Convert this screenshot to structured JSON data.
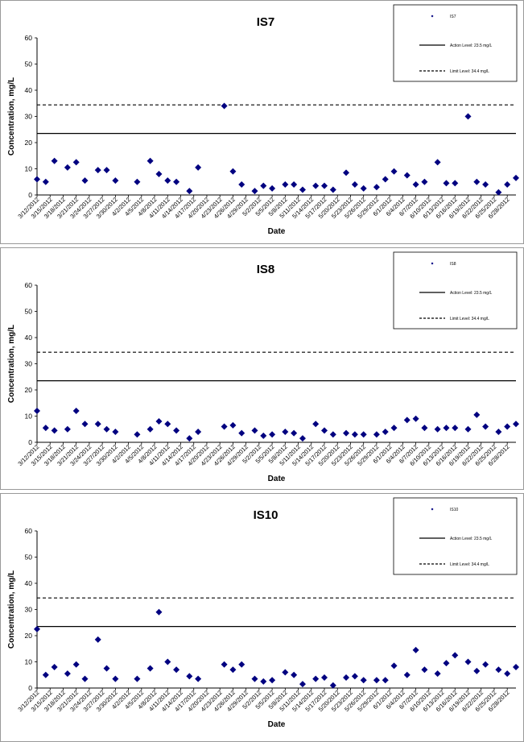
{
  "chart_data": [
    {
      "type": "scatter",
      "title": "IS7",
      "xlabel": "Date",
      "ylabel": "Concentration, mg/L",
      "ylim": [
        0,
        60
      ],
      "yticks": [
        0,
        10,
        20,
        30,
        40,
        50,
        60
      ],
      "xrange": [
        "2012-03-12",
        "2012-06-30"
      ],
      "xtick_labels": [
        "3/12/2012",
        "3/15/2012",
        "3/18/2012",
        "3/21/2012",
        "3/24/2012",
        "3/27/2012",
        "3/30/2012",
        "4/2/2012",
        "4/5/2012",
        "4/8/2012",
        "4/11/2012",
        "4/14/2012",
        "4/17/2012",
        "4/20/2012",
        "4/23/2012",
        "4/26/2012",
        "4/29/2012",
        "5/2/2012",
        "5/5/2012",
        "5/8/2012",
        "5/11/2012",
        "5/14/2012",
        "5/17/2012",
        "5/20/2012",
        "5/23/2012",
        "5/26/2012",
        "5/29/2012",
        "6/1/2012",
        "6/4/2012",
        "6/7/2012",
        "6/10/2012",
        "6/13/2012",
        "6/16/2012",
        "6/19/2012",
        "6/22/2012",
        "6/25/2012",
        "6/28/2012"
      ],
      "lines": [
        {
          "name": "Action Level: 23.5 mg/L",
          "y": 23.5,
          "style": "solid"
        },
        {
          "name": "Limit Level: 34.4 mg/L",
          "y": 34.4,
          "style": "dashed"
        }
      ],
      "legend": [
        "IS7",
        "Action Level: 23.5 mg/L",
        "Limit Level: 34.4 mg/L"
      ],
      "legend_position": "top-right",
      "series": [
        {
          "name": "IS7",
          "x": [
            "2012-03-12",
            "2012-03-14",
            "2012-03-16",
            "2012-03-19",
            "2012-03-21",
            "2012-03-23",
            "2012-03-26",
            "2012-03-28",
            "2012-03-30",
            "2012-04-04",
            "2012-04-07",
            "2012-04-09",
            "2012-04-11",
            "2012-04-13",
            "2012-04-16",
            "2012-04-18",
            "2012-04-24",
            "2012-04-26",
            "2012-04-28",
            "2012-05-01",
            "2012-05-03",
            "2012-05-05",
            "2012-05-08",
            "2012-05-10",
            "2012-05-12",
            "2012-05-15",
            "2012-05-17",
            "2012-05-19",
            "2012-05-22",
            "2012-05-24",
            "2012-05-26",
            "2012-05-29",
            "2012-05-31",
            "2012-06-02",
            "2012-06-05",
            "2012-06-07",
            "2012-06-09",
            "2012-06-12",
            "2012-06-14",
            "2012-06-16",
            "2012-06-19",
            "2012-06-21",
            "2012-06-23",
            "2012-06-26",
            "2012-06-28",
            "2012-06-30"
          ],
          "values": [
            6.0,
            5.0,
            13.0,
            10.5,
            12.5,
            5.5,
            9.5,
            9.5,
            5.5,
            5.0,
            13.0,
            8.0,
            5.5,
            5.0,
            1.5,
            10.5,
            34.0,
            9.0,
            4.0,
            1.5,
            3.5,
            2.5,
            4.0,
            4.0,
            2.0,
            3.5,
            3.5,
            2.0,
            8.5,
            4.0,
            2.5,
            3.0,
            6.0,
            9.0,
            7.5,
            4.0,
            5.0,
            12.5,
            4.5,
            4.5,
            30.0,
            5.0,
            4.0,
            1.0,
            4.0,
            6.5
          ]
        }
      ]
    },
    {
      "type": "scatter",
      "title": "IS8",
      "xlabel": "Date",
      "ylabel": "Concentration, mg/L",
      "ylim": [
        0,
        60
      ],
      "yticks": [
        0,
        10,
        20,
        30,
        40,
        50,
        60
      ],
      "xrange": [
        "2012-03-12",
        "2012-06-30"
      ],
      "xtick_labels": [
        "3/12/2012",
        "3/15/2012",
        "3/18/2012",
        "3/21/2012",
        "3/24/2012",
        "3/27/2012",
        "3/30/2012",
        "4/2/2012",
        "4/5/2012",
        "4/8/2012",
        "4/11/2012",
        "4/14/2012",
        "4/17/2012",
        "4/20/2012",
        "4/23/2012",
        "4/26/2012",
        "4/29/2012",
        "5/2/2012",
        "5/5/2012",
        "5/8/2012",
        "5/11/2012",
        "5/14/2012",
        "5/17/2012",
        "5/20/2012",
        "5/23/2012",
        "5/26/2012",
        "5/29/2012",
        "6/1/2012",
        "6/4/2012",
        "6/7/2012",
        "6/10/2012",
        "6/13/2012",
        "6/16/2012",
        "6/19/2012",
        "6/22/2012",
        "6/25/2012",
        "6/28/2012"
      ],
      "lines": [
        {
          "name": "Action Level: 23.5 mg/L",
          "y": 23.5,
          "style": "solid"
        },
        {
          "name": "Limit Level: 34.4 mg/L",
          "y": 34.4,
          "style": "dashed"
        }
      ],
      "legend": [
        "IS8",
        "Action Level: 23.5 mg/L",
        "Limit Level: 34.4 mg/L"
      ],
      "legend_position": "top-right",
      "series": [
        {
          "name": "IS8",
          "x": [
            "2012-03-12",
            "2012-03-14",
            "2012-03-16",
            "2012-03-19",
            "2012-03-21",
            "2012-03-23",
            "2012-03-26",
            "2012-03-28",
            "2012-03-30",
            "2012-04-04",
            "2012-04-07",
            "2012-04-09",
            "2012-04-11",
            "2012-04-13",
            "2012-04-16",
            "2012-04-18",
            "2012-04-24",
            "2012-04-26",
            "2012-04-28",
            "2012-05-01",
            "2012-05-03",
            "2012-05-05",
            "2012-05-08",
            "2012-05-10",
            "2012-05-12",
            "2012-05-15",
            "2012-05-17",
            "2012-05-19",
            "2012-05-22",
            "2012-05-24",
            "2012-05-26",
            "2012-05-29",
            "2012-05-31",
            "2012-06-02",
            "2012-06-05",
            "2012-06-07",
            "2012-06-09",
            "2012-06-12",
            "2012-06-14",
            "2012-06-16",
            "2012-06-19",
            "2012-06-21",
            "2012-06-23",
            "2012-06-26",
            "2012-06-28",
            "2012-06-30"
          ],
          "values": [
            12.0,
            5.5,
            4.5,
            5.0,
            12.0,
            7.0,
            7.0,
            5.0,
            4.0,
            3.0,
            5.0,
            8.0,
            7.0,
            4.5,
            1.5,
            4.0,
            6.0,
            6.5,
            3.5,
            4.5,
            2.5,
            3.0,
            4.0,
            3.5,
            1.5,
            7.0,
            4.5,
            3.0,
            3.5,
            3.0,
            3.0,
            3.0,
            4.0,
            5.5,
            8.5,
            9.0,
            5.5,
            5.0,
            5.5,
            5.5,
            5.0,
            10.5,
            6.0,
            4.0,
            6.0,
            7.0
          ]
        }
      ]
    },
    {
      "type": "scatter",
      "title": "IS10",
      "xlabel": "Date",
      "ylabel": "Concentration, mg/L",
      "ylim": [
        0,
        60
      ],
      "yticks": [
        0,
        10,
        20,
        30,
        40,
        50,
        60
      ],
      "xrange": [
        "2012-03-12",
        "2012-06-30"
      ],
      "xtick_labels": [
        "3/12/2012",
        "3/15/2012",
        "3/18/2012",
        "3/21/2012",
        "3/24/2012",
        "3/27/2012",
        "3/30/2012",
        "4/2/2012",
        "4/5/2012",
        "4/8/2012",
        "4/11/2012",
        "4/14/2012",
        "4/17/2012",
        "4/20/2012",
        "4/23/2012",
        "4/26/2012",
        "4/29/2012",
        "5/2/2012",
        "5/5/2012",
        "5/8/2012",
        "5/11/2012",
        "5/14/2012",
        "5/17/2012",
        "5/20/2012",
        "5/23/2012",
        "5/26/2012",
        "5/29/2012",
        "6/1/2012",
        "6/4/2012",
        "6/7/2012",
        "6/10/2012",
        "6/13/2012",
        "6/16/2012",
        "6/19/2012",
        "6/22/2012",
        "6/25/2012",
        "6/28/2012"
      ],
      "lines": [
        {
          "name": "Action Level: 23.5 mg/L",
          "y": 23.5,
          "style": "solid"
        },
        {
          "name": "Limit Level: 34.4 mg/L",
          "y": 34.4,
          "style": "dashed"
        }
      ],
      "legend": [
        "IS10",
        "Action Level: 23.5 mg/L",
        "Limit Level: 34.4 mg/L"
      ],
      "legend_position": "top-right",
      "series": [
        {
          "name": "IS10",
          "x": [
            "2012-03-12",
            "2012-03-14",
            "2012-03-16",
            "2012-03-19",
            "2012-03-21",
            "2012-03-23",
            "2012-03-26",
            "2012-03-28",
            "2012-03-30",
            "2012-04-04",
            "2012-04-07",
            "2012-04-09",
            "2012-04-11",
            "2012-04-13",
            "2012-04-16",
            "2012-04-18",
            "2012-04-24",
            "2012-04-26",
            "2012-04-28",
            "2012-05-01",
            "2012-05-03",
            "2012-05-05",
            "2012-05-08",
            "2012-05-10",
            "2012-05-12",
            "2012-05-15",
            "2012-05-17",
            "2012-05-19",
            "2012-05-22",
            "2012-05-24",
            "2012-05-26",
            "2012-05-29",
            "2012-05-31",
            "2012-06-02",
            "2012-06-05",
            "2012-06-07",
            "2012-06-09",
            "2012-06-12",
            "2012-06-14",
            "2012-06-16",
            "2012-06-19",
            "2012-06-21",
            "2012-06-23",
            "2012-06-26",
            "2012-06-28",
            "2012-06-30"
          ],
          "values": [
            22.5,
            5.0,
            8.0,
            5.5,
            9.0,
            3.5,
            18.5,
            7.5,
            3.5,
            3.5,
            7.5,
            29.0,
            10.0,
            7.0,
            4.5,
            3.5,
            9.0,
            7.0,
            9.0,
            3.5,
            2.5,
            3.0,
            6.0,
            5.0,
            1.5,
            3.5,
            4.0,
            1.0,
            4.0,
            4.5,
            3.0,
            3.0,
            3.0,
            8.5,
            5.0,
            14.5,
            7.0,
            5.5,
            9.5,
            12.5,
            10.0,
            6.5,
            9.0,
            7.0,
            5.5,
            8.0
          ]
        }
      ]
    }
  ]
}
